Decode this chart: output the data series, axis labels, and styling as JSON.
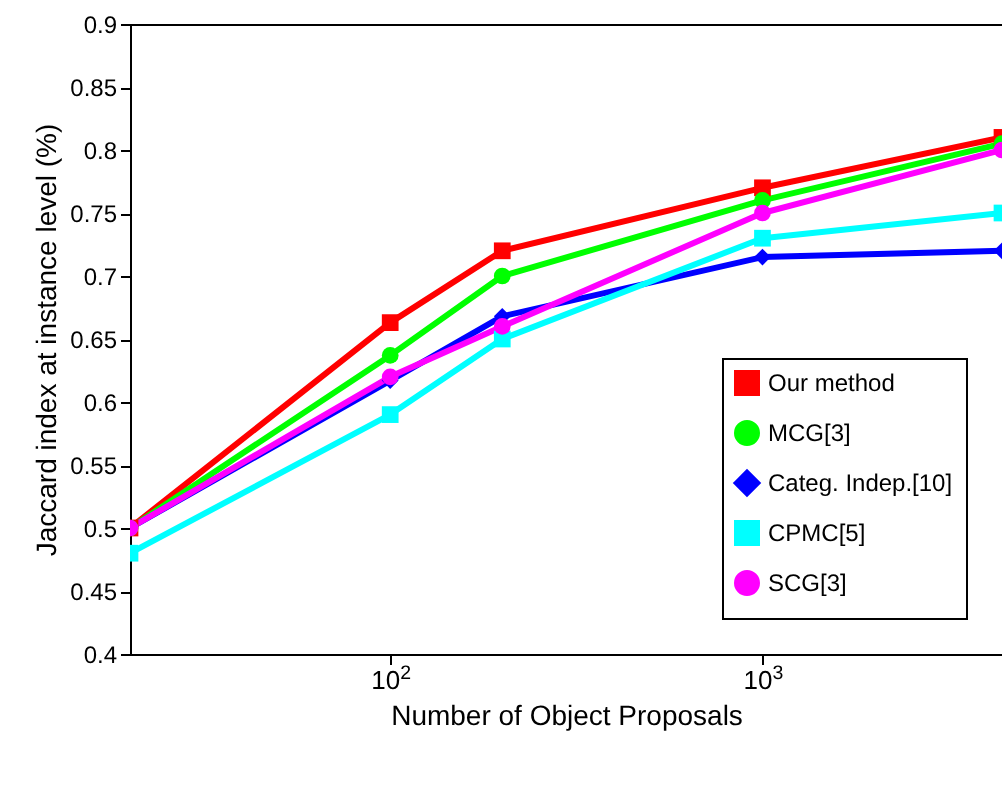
{
  "chart_data": {
    "type": "line",
    "xlabel": "Number of Object Proposals",
    "ylabel": "Jaccard index at instance level (%)",
    "x": [
      20,
      100,
      200,
      1000,
      4400
    ],
    "log": "x",
    "xlim": [
      20,
      4400
    ],
    "xticks": [
      {
        "value": 100,
        "label": "10$^{2}$"
      },
      {
        "value": 1000,
        "label": "10$^{3}$"
      }
    ],
    "ylim": [
      0.4,
      0.9
    ],
    "yticks": [
      0.4,
      0.45,
      0.5,
      0.55,
      0.6,
      0.65,
      0.7,
      0.75,
      0.8,
      0.85,
      0.9
    ],
    "grid": false,
    "legend": "bottom right",
    "line_style": "solid",
    "series": [
      {
        "name": "Our method",
        "color": "#ff0000",
        "marker": "square",
        "values": [
          0.5,
          0.663,
          0.72,
          0.77,
          0.81
        ]
      },
      {
        "name": "MCG[3]",
        "color": "#00ff00",
        "marker": "circle",
        "values": [
          0.5,
          0.637,
          0.7,
          0.76,
          0.805
        ]
      },
      {
        "name": "Categ. Indep.[10]",
        "color": "#0000ff",
        "marker": "diamond",
        "values": [
          0.5,
          0.617,
          0.668,
          0.715,
          0.72
        ]
      },
      {
        "name": "CPMC[5]",
        "color": "#00ffff",
        "marker": "square",
        "values": [
          0.48,
          0.59,
          0.65,
          0.73,
          0.75
        ]
      },
      {
        "name": "SCG[3]",
        "color": "#ff00ff",
        "marker": "circle",
        "values": [
          0.5,
          0.62,
          0.66,
          0.75,
          0.8
        ]
      }
    ]
  }
}
